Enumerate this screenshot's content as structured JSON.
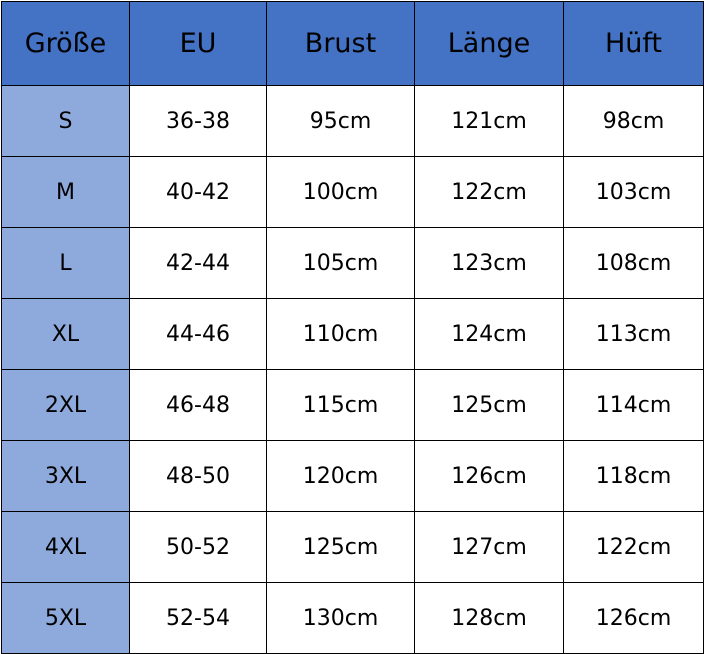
{
  "colors": {
    "header": "#4472C4",
    "size_column": "#8EA9DB"
  },
  "headers": [
    "Größe",
    "EU",
    "Brust",
    "Länge",
    "Hüft"
  ],
  "rows": [
    [
      "S",
      "36-38",
      "95cm",
      "121cm",
      "98cm"
    ],
    [
      "M",
      "40-42",
      "100cm",
      "122cm",
      "103cm"
    ],
    [
      "L",
      "42-44",
      "105cm",
      "123cm",
      "108cm"
    ],
    [
      "XL",
      "44-46",
      "110cm",
      "124cm",
      "113cm"
    ],
    [
      "2XL",
      "46-48",
      "115cm",
      "125cm",
      "114cm"
    ],
    [
      "3XL",
      "48-50",
      "120cm",
      "126cm",
      "118cm"
    ],
    [
      "4XL",
      "50-52",
      "125cm",
      "127cm",
      "122cm"
    ],
    [
      "5XL",
      "52-54",
      "130cm",
      "128cm",
      "126cm"
    ]
  ]
}
